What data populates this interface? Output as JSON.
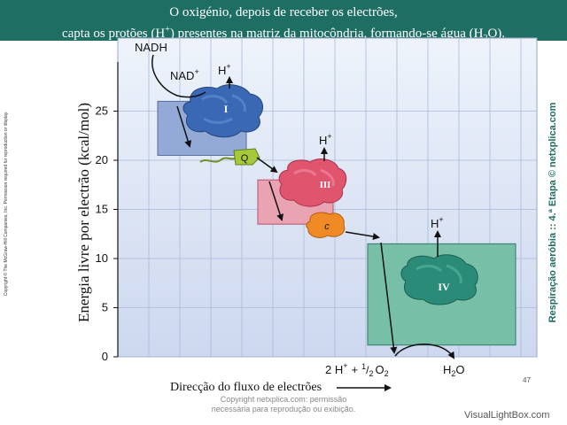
{
  "title": {
    "line1": "O oxigénio, depois de receber os electrões,",
    "line2_pre": "capta os protões (H",
    "line2_sup": "+",
    "line2_mid": ") presentes na matriz da mitocôndria, formando-se água (H",
    "line2_sub": "2",
    "line2_post": "O)."
  },
  "chart_data": {
    "type": "diagram",
    "ylabel": "Energia livre por electrão (kcal/mol)",
    "xlabel": "Direcção do fluxo de electrões",
    "y_ticks": [
      0,
      5,
      10,
      15,
      20,
      25
    ],
    "ylim": [
      0,
      27
    ],
    "complexes": [
      {
        "label": "I",
        "top": 26,
        "bottom": 20.5,
        "color": "#3a68b4",
        "box_color": "#93a9d6"
      },
      {
        "label": "III",
        "top": 18,
        "bottom": 13.5,
        "color": "#e0546e",
        "box_color": "#eaa3b2"
      },
      {
        "label": "IV",
        "top": 11.5,
        "bottom": 1.2,
        "color": "#2a8c78",
        "box_color": "#78bfa8"
      }
    ],
    "carriers": [
      {
        "label": "Q",
        "level": 20.3,
        "color": "#a6c93a"
      },
      {
        "label": "c",
        "level": 13,
        "color": "#f08a24"
      }
    ],
    "labels": {
      "nadh": "NADH",
      "nad_base": "NAD",
      "nad_sup": "+",
      "h_base": "H",
      "h_sup": "+",
      "two_h": "2 H",
      "plus": "+",
      "half": "1",
      "half_den": "2",
      "o2": "O",
      "o2_sub": "2",
      "h2o_a": "H",
      "h2o_sub": "2",
      "h2o_b": "O"
    }
  },
  "sidebar": {
    "copyright": "Copyright © The McGraw-Hill Companies, Inc. Permission required for reproduction or display.",
    "credit": "Respiração aeróbia :: 4.ª Etapa © netxplica.com"
  },
  "footer": {
    "note_line1": "Copyright netxplica.com: permissão",
    "note_line2": "necessária para reprodução ou exibição.",
    "page_number": "47",
    "watermark": "VisualLightBox.com"
  }
}
